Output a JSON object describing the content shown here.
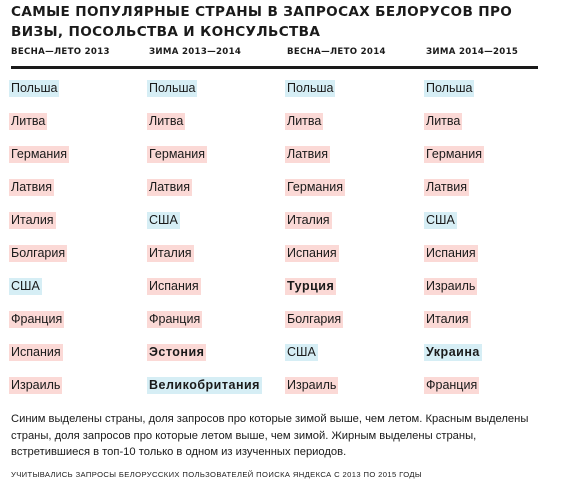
{
  "title": "САМЫЕ ПОПУЛЯРНЫЕ СТРАНЫ В ЗАПРОСАХ БЕЛОРУСОВ ПРО ВИЗЫ, ПОСОЛЬСТВА И КОНСУЛЬСТВА",
  "chart_data": {
    "type": "table",
    "columns": [
      "ВЕСНА—ЛЕТО 2013",
      "ЗИМА 2013—2014",
      "ВЕСНА—ЛЕТО 2014",
      "ЗИМА 2014—2015"
    ],
    "rows": [
      [
        {
          "text": "Польша",
          "color": "blue",
          "bold": false
        },
        {
          "text": "Польша",
          "color": "blue",
          "bold": false
        },
        {
          "text": "Польша",
          "color": "blue",
          "bold": false
        },
        {
          "text": "Польша",
          "color": "blue",
          "bold": false
        }
      ],
      [
        {
          "text": "Литва",
          "color": "red",
          "bold": false
        },
        {
          "text": "Литва",
          "color": "red",
          "bold": false
        },
        {
          "text": "Литва",
          "color": "red",
          "bold": false
        },
        {
          "text": "Литва",
          "color": "red",
          "bold": false
        }
      ],
      [
        {
          "text": "Германия",
          "color": "red",
          "bold": false
        },
        {
          "text": "Германия",
          "color": "red",
          "bold": false
        },
        {
          "text": "Латвия",
          "color": "red",
          "bold": false
        },
        {
          "text": "Германия",
          "color": "red",
          "bold": false
        }
      ],
      [
        {
          "text": "Латвия",
          "color": "red",
          "bold": false
        },
        {
          "text": "Латвия",
          "color": "red",
          "bold": false
        },
        {
          "text": "Германия",
          "color": "red",
          "bold": false
        },
        {
          "text": "Латвия",
          "color": "red",
          "bold": false
        }
      ],
      [
        {
          "text": "Италия",
          "color": "red",
          "bold": false
        },
        {
          "text": "США",
          "color": "blue",
          "bold": false
        },
        {
          "text": "Италия",
          "color": "red",
          "bold": false
        },
        {
          "text": "США",
          "color": "blue",
          "bold": false
        }
      ],
      [
        {
          "text": "Болгария",
          "color": "red",
          "bold": false
        },
        {
          "text": "Италия",
          "color": "red",
          "bold": false
        },
        {
          "text": "Испания",
          "color": "red",
          "bold": false
        },
        {
          "text": "Испания",
          "color": "red",
          "bold": false
        }
      ],
      [
        {
          "text": "США",
          "color": "blue",
          "bold": false
        },
        {
          "text": "Испания",
          "color": "red",
          "bold": false
        },
        {
          "text": "Турция",
          "color": "red",
          "bold": true
        },
        {
          "text": "Израиль",
          "color": "red",
          "bold": false
        }
      ],
      [
        {
          "text": "Франция",
          "color": "red",
          "bold": false
        },
        {
          "text": "Франция",
          "color": "red",
          "bold": false
        },
        {
          "text": "Болгария",
          "color": "red",
          "bold": false
        },
        {
          "text": "Италия",
          "color": "red",
          "bold": false
        }
      ],
      [
        {
          "text": "Испания",
          "color": "red",
          "bold": false
        },
        {
          "text": "Эстония",
          "color": "red",
          "bold": true
        },
        {
          "text": "США",
          "color": "blue",
          "bold": false
        },
        {
          "text": "Украина",
          "color": "blue",
          "bold": true
        }
      ],
      [
        {
          "text": "Израиль",
          "color": "red",
          "bold": false
        },
        {
          "text": "Великобритания",
          "color": "blue",
          "bold": true
        },
        {
          "text": "Израиль",
          "color": "red",
          "bold": false
        },
        {
          "text": "Франция",
          "color": "red",
          "bold": false
        }
      ]
    ],
    "highlight_colors": {
      "blue": "#d6eef5",
      "red": "#fbd9d6"
    }
  },
  "note": "Синим выделены страны, доля запросов про которые зимой выше, чем летом. Красным выделены страны, доля запросов про которые летом выше, чем зимой. Жирным выделены страны, встретившиеся в топ-10 только в одном из изученных периодов.",
  "source": "УЧИТЫВАЛИСЬ ЗАПРОСЫ БЕЛОРУССКИХ ПОЛЬЗОВАТЕЛЕЙ ПОИСКА ЯНДЕКСА С 2013 ПО 2015 ГОДЫ"
}
